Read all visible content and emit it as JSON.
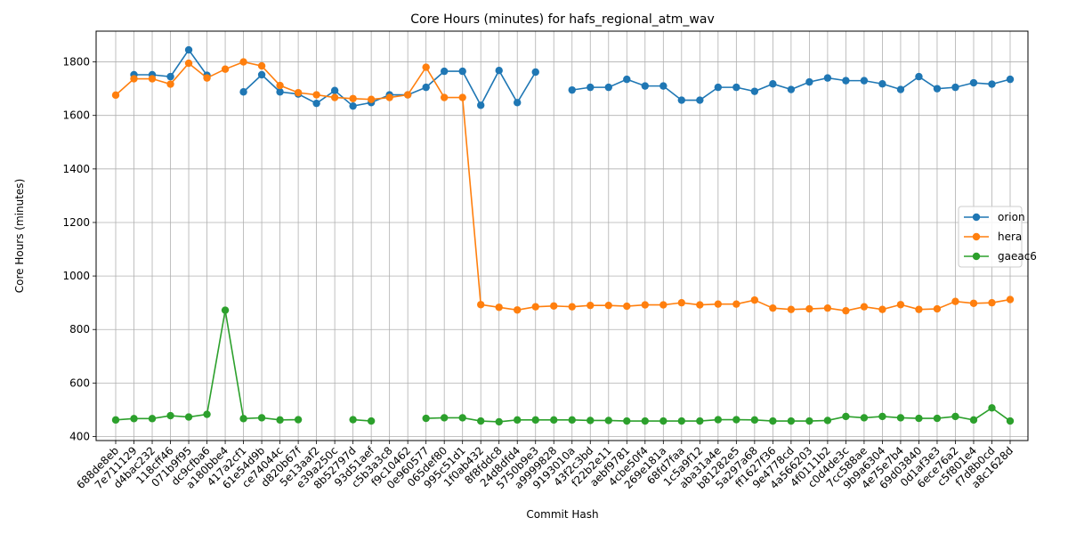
{
  "chart_data": {
    "type": "line",
    "title": "Core Hours (minutes) for hafs_regional_atm_wav",
    "xlabel": "Commit Hash",
    "ylabel": "Core Hours (minutes)",
    "ylim": [
      385,
      1915
    ],
    "yticks": [
      400,
      600,
      800,
      1000,
      1200,
      1400,
      1600,
      1800
    ],
    "grid": true,
    "legend": "center-right",
    "categories": [
      "688de8eb",
      "7e711129",
      "d4bac232",
      "118cff46",
      "071b9f95",
      "dc9cfba6",
      "a180bbe4",
      "417a2cf1",
      "61e54d9b",
      "ce74044c",
      "d820b67f",
      "5e13aaf2",
      "e39a250c",
      "8b52797d",
      "93d51aef",
      "c5b3a3c8",
      "f9c10462",
      "0e960577",
      "065def80",
      "995c51d1",
      "1f0ab432",
      "8f8fddc8",
      "24d8dfd4",
      "5750b9e3",
      "a9999828",
      "9193010a",
      "43f2c3bd",
      "f22b2e11",
      "aebf9781",
      "4cbe50f4",
      "269e181a",
      "68fd7faa",
      "1c5a9f12",
      "aba31a4e",
      "b81282e5",
      "5a297a68",
      "ff1627f36",
      "9e4778cd",
      "4a566203",
      "4f0111b2",
      "c0d4de3c",
      "7cc588ae",
      "9b9a6304",
      "4e75e7b4",
      "69d03840",
      "0d1af3e3",
      "6ece76a2",
      "c5f801e4",
      "f7d8b0cd",
      "a8c1628d"
    ],
    "series": [
      {
        "name": "orion",
        "color": "#1f77b4",
        "values": [
          null,
          1752,
          1752,
          1745,
          1845,
          1750,
          null,
          1688,
          1752,
          1688,
          1680,
          1645,
          1693,
          1635,
          1648,
          1677,
          1677,
          1705,
          1765,
          1765,
          1638,
          1768,
          1648,
          1762,
          null,
          1695,
          1705,
          1705,
          1735,
          1710,
          1710,
          1657,
          1657,
          1705,
          1705,
          1690,
          1718,
          1697,
          1725,
          1740,
          1730,
          1730,
          1718,
          1697,
          1745,
          1700,
          1705,
          1722,
          1717,
          1735
        ]
      },
      {
        "name": "hera",
        "color": "#ff7f0e",
        "values": [
          1676,
          1737,
          1737,
          1717,
          1795,
          1740,
          1773,
          1800,
          1785,
          1712,
          1685,
          1677,
          1667,
          1663,
          1660,
          1667,
          1677,
          1780,
          1667,
          1667,
          893,
          883,
          873,
          885,
          888,
          885,
          890,
          890,
          887,
          892,
          892,
          900,
          892,
          895,
          895,
          910,
          880,
          875,
          877,
          880,
          870,
          885,
          875,
          893,
          875,
          877,
          905,
          898,
          900,
          912
        ]
      },
      {
        "name": "gaeac6",
        "color": "#2ca02c",
        "values": [
          462,
          467,
          467,
          478,
          473,
          483,
          872,
          467,
          470,
          462,
          463,
          null,
          null,
          463,
          458,
          null,
          null,
          468,
          470,
          470,
          458,
          455,
          462,
          462,
          462,
          462,
          460,
          460,
          458,
          458,
          458,
          458,
          458,
          463,
          463,
          462,
          458,
          458,
          458,
          460,
          475,
          470,
          475,
          470,
          468,
          468,
          475,
          462,
          507,
          458
        ]
      }
    ]
  }
}
